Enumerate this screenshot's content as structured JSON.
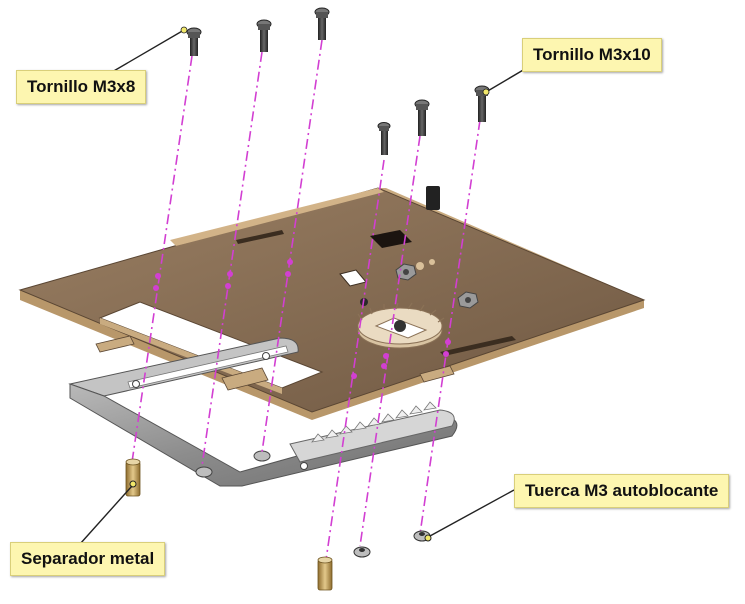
{
  "callouts": {
    "screw_m3x8": "Tornillo M3x8",
    "screw_m3x10": "Tornillo M3x10",
    "nut": "Tuerca M3 autoblocante",
    "spacer": "Separador metal"
  },
  "colors": {
    "wood_top": "#8b7257",
    "wood_edge": "#c9ab80",
    "metal": "#8f8f8f",
    "metal_light": "#d6d6d6",
    "guide_line": "#d23fd2",
    "callout_bg": "#fdf6b0",
    "leader_dot": "#f2e86b",
    "screw": "#333333",
    "brass": "#c8a560"
  }
}
